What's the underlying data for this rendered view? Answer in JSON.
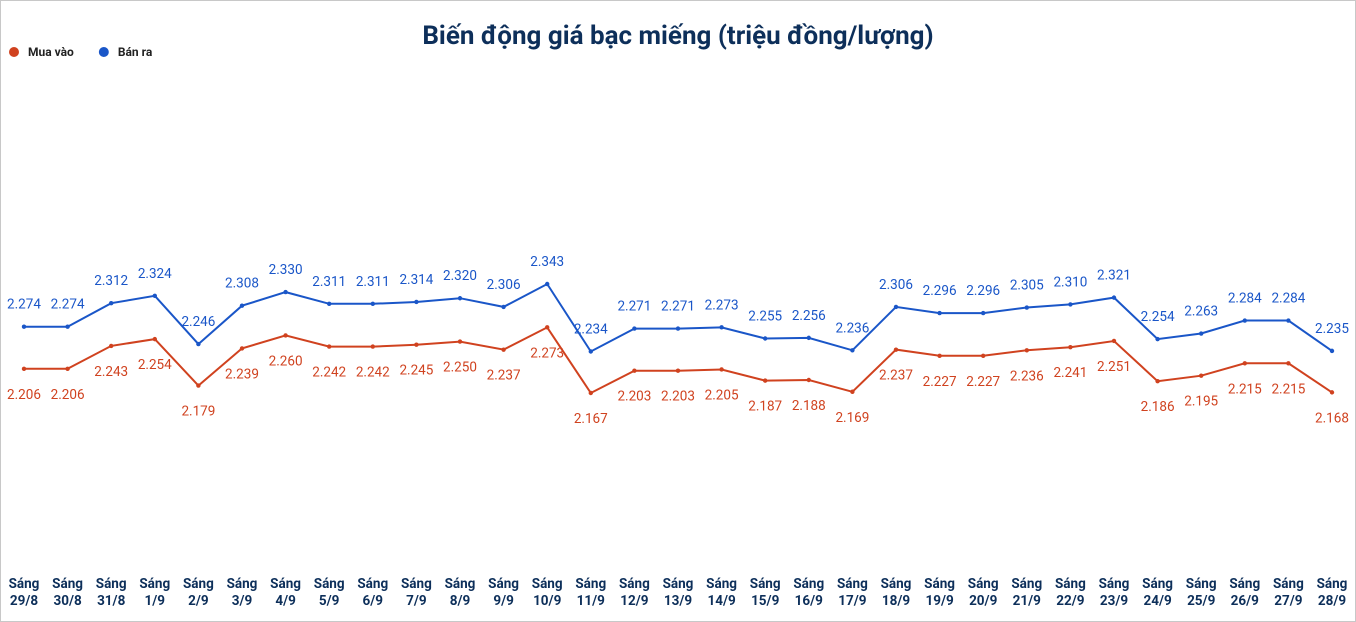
{
  "chart_data": {
    "type": "line",
    "title": "Biến động giá bạc miếng (triệu đồng/lượng)",
    "categories": [
      "Sáng 29/8",
      "Sáng 30/8",
      "Sáng 31/8",
      "Sáng 1/9",
      "Sáng 2/9",
      "Sáng 3/9",
      "Sáng 4/9",
      "Sáng 5/9",
      "Sáng 6/9",
      "Sáng 7/9",
      "Sáng 8/9",
      "Sáng 9/9",
      "Sáng 10/9",
      "Sáng 11/9",
      "Sáng 12/9",
      "Sáng 13/9",
      "Sáng 14/9",
      "Sáng 15/9",
      "Sáng 16/9",
      "Sáng 17/9",
      "Sáng 18/9",
      "Sáng 19/9",
      "Sáng 20/9",
      "Sáng 21/9",
      "Sáng 22/9",
      "Sáng 23/9",
      "Sáng 24/9",
      "Sáng 25/9",
      "Sáng 26/9",
      "Sáng 27/9",
      "Sáng 28/9"
    ],
    "series": [
      {
        "name": "Mua vào",
        "color": "#d0421f",
        "label_position": "below",
        "values": [
          2.206,
          2.206,
          2.243,
          2.254,
          2.179,
          2.239,
          2.26,
          2.242,
          2.242,
          2.245,
          2.25,
          2.237,
          2.273,
          2.167,
          2.203,
          2.203,
          2.205,
          2.187,
          2.188,
          2.169,
          2.237,
          2.227,
          2.227,
          2.236,
          2.241,
          2.251,
          2.186,
          2.195,
          2.215,
          2.215,
          2.168
        ],
        "value_labels": [
          "2.206",
          "2.206",
          "2.243",
          "2.254",
          "2.179",
          "2.239",
          "2.260",
          "2.242",
          "2.242",
          "2.245",
          "2.250",
          "2.237",
          "2.273",
          "2.167",
          "2.203",
          "2.203",
          "2.205",
          "2.187",
          "2.188",
          "2.169",
          "2.237",
          "2.227",
          "2.227",
          "2.236",
          "2.241",
          "2.251",
          "2.186",
          "2.195",
          "2.215",
          "2.215",
          "2.168"
        ]
      },
      {
        "name": "Bán ra",
        "color": "#1a56c8",
        "label_position": "above",
        "values": [
          2.274,
          2.274,
          2.312,
          2.324,
          2.246,
          2.308,
          2.33,
          2.311,
          2.311,
          2.314,
          2.32,
          2.306,
          2.343,
          2.234,
          2.271,
          2.271,
          2.273,
          2.255,
          2.256,
          2.236,
          2.306,
          2.296,
          2.296,
          2.305,
          2.31,
          2.321,
          2.254,
          2.263,
          2.284,
          2.284,
          2.235
        ],
        "value_labels": [
          "2.274",
          "2.274",
          "2.312",
          "2.324",
          "2.246",
          "2.308",
          "2.330",
          "2.311",
          "2.311",
          "2.314",
          "2.320",
          "2.306",
          "2.343",
          "2.234",
          "2.271",
          "2.271",
          "2.273",
          "2.255",
          "2.256",
          "2.236",
          "2.306",
          "2.296",
          "2.296",
          "2.305",
          "2.310",
          "2.321",
          "2.254",
          "2.263",
          "2.284",
          "2.284",
          "2.235"
        ]
      }
    ]
  }
}
